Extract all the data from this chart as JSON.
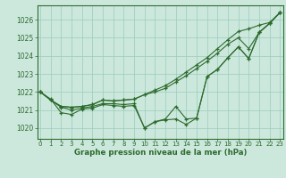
{
  "xlabel": "Graphe pression niveau de la mer (hPa)",
  "background_color": "#cce8dd",
  "grid_color": "#99ccbb",
  "line_color": "#2d6b2d",
  "x_ticks": [
    0,
    1,
    2,
    3,
    4,
    5,
    6,
    7,
    8,
    9,
    10,
    11,
    12,
    13,
    14,
    15,
    16,
    17,
    18,
    19,
    20,
    21,
    22,
    23
  ],
  "y_ticks": [
    1020,
    1021,
    1022,
    1023,
    1024,
    1025,
    1026
  ],
  "ylim": [
    1019.4,
    1026.8
  ],
  "xlim": [
    -0.3,
    23.3
  ],
  "series": [
    [
      1022.0,
      1021.55,
      1021.2,
      1021.15,
      1021.2,
      1021.3,
      1021.55,
      1021.5,
      1021.55,
      1021.6,
      1021.85,
      1022.1,
      1022.35,
      1022.7,
      1023.1,
      1023.5,
      1023.9,
      1024.4,
      1024.9,
      1025.35,
      1025.5,
      1025.7,
      1025.85,
      1026.4
    ],
    [
      1022.0,
      1021.55,
      1021.2,
      1021.15,
      1021.2,
      1021.3,
      1021.55,
      1021.5,
      1021.55,
      1021.6,
      1021.85,
      1022.0,
      1022.2,
      1022.55,
      1022.9,
      1023.3,
      1023.7,
      1024.15,
      1024.65,
      1025.0,
      1024.4,
      1025.3,
      1025.8,
      1026.4
    ],
    [
      1022.0,
      1021.55,
      1021.15,
      1021.0,
      1021.1,
      1021.2,
      1021.35,
      1021.35,
      1021.3,
      1021.35,
      1020.0,
      1020.35,
      1020.5,
      1021.2,
      1020.5,
      1020.55,
      1022.85,
      1023.25,
      1023.9,
      1024.5,
      1023.85,
      1025.3,
      1025.8,
      1026.4
    ],
    [
      1022.0,
      1021.6,
      1020.85,
      1020.75,
      1021.05,
      1021.1,
      1021.3,
      1021.25,
      1021.2,
      1021.25,
      1020.0,
      1020.35,
      1020.45,
      1020.5,
      1020.2,
      1020.55,
      1022.85,
      1023.25,
      1023.9,
      1024.5,
      1023.85,
      1025.3,
      1025.8,
      1026.4
    ]
  ]
}
